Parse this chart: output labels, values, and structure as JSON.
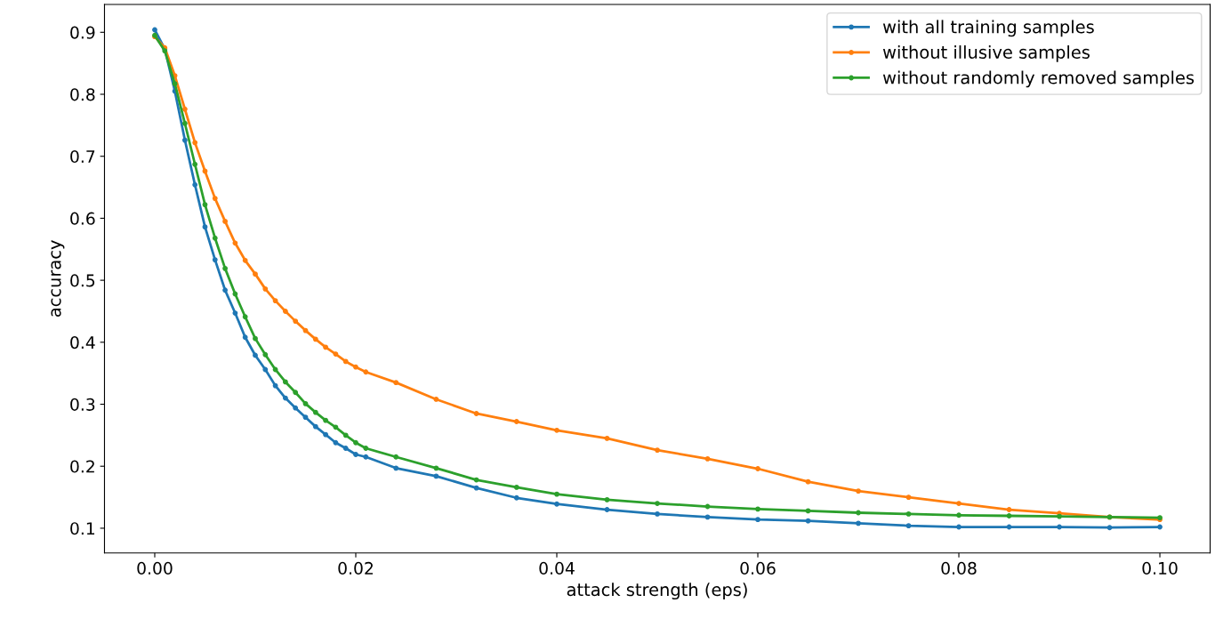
{
  "chart_data": {
    "type": "line",
    "xlabel": "attack strength (eps)",
    "ylabel": "accuracy",
    "x": [
      0,
      0.001,
      0.002,
      0.003,
      0.004,
      0.005,
      0.006,
      0.007,
      0.008,
      0.009,
      0.01,
      0.011,
      0.012,
      0.013,
      0.014,
      0.015,
      0.016,
      0.017,
      0.018,
      0.019,
      0.02,
      0.021,
      0.024,
      0.028,
      0.032,
      0.036,
      0.04,
      0.045,
      0.05,
      0.055,
      0.06,
      0.065,
      0.07,
      0.075,
      0.08,
      0.085,
      0.09,
      0.095,
      0.1
    ],
    "series": [
      {
        "name": "with all training samples",
        "color": "#1f77b4",
        "values": [
          0.904,
          0.873,
          0.805,
          0.726,
          0.654,
          0.586,
          0.533,
          0.484,
          0.447,
          0.408,
          0.379,
          0.356,
          0.33,
          0.31,
          0.294,
          0.279,
          0.264,
          0.251,
          0.238,
          0.229,
          0.219,
          0.215,
          0.197,
          0.184,
          0.165,
          0.149,
          0.139,
          0.13,
          0.123,
          0.118,
          0.114,
          0.112,
          0.108,
          0.104,
          0.102,
          0.102,
          0.102,
          0.101,
          0.102
        ]
      },
      {
        "name": "without illusive samples",
        "color": "#ff7f0e",
        "values": [
          0.893,
          0.875,
          0.83,
          0.776,
          0.722,
          0.676,
          0.632,
          0.595,
          0.56,
          0.532,
          0.51,
          0.486,
          0.467,
          0.45,
          0.434,
          0.419,
          0.405,
          0.392,
          0.381,
          0.369,
          0.36,
          0.352,
          0.335,
          0.308,
          0.285,
          0.272,
          0.258,
          0.245,
          0.226,
          0.212,
          0.196,
          0.175,
          0.16,
          0.15,
          0.14,
          0.13,
          0.124,
          0.118,
          0.114
        ]
      },
      {
        "name": "without randomly removed samples",
        "color": "#2ca02c",
        "values": [
          0.895,
          0.87,
          0.817,
          0.753,
          0.687,
          0.622,
          0.568,
          0.519,
          0.478,
          0.441,
          0.406,
          0.38,
          0.356,
          0.336,
          0.319,
          0.301,
          0.287,
          0.274,
          0.263,
          0.25,
          0.238,
          0.229,
          0.215,
          0.197,
          0.178,
          0.166,
          0.155,
          0.146,
          0.14,
          0.135,
          0.131,
          0.128,
          0.125,
          0.123,
          0.121,
          0.12,
          0.119,
          0.118,
          0.117
        ]
      }
    ],
    "xlim": [
      -0.005,
      0.105
    ],
    "xticks": [
      {
        "value": 0,
        "label": "0.00"
      },
      {
        "value": 0.02,
        "label": "0.02"
      },
      {
        "value": 0.04,
        "label": "0.04"
      },
      {
        "value": 0.06,
        "label": "0.06"
      },
      {
        "value": 0.08,
        "label": "0.08"
      },
      {
        "value": 0.1,
        "label": "0.10"
      }
    ],
    "ylim": [
      0.06,
      0.945
    ],
    "yticks": [
      0.1,
      0.2,
      0.3,
      0.4,
      0.5,
      0.6,
      0.7,
      0.8,
      0.9
    ],
    "legend": "top right",
    "marker": "circle",
    "line_style": "solid",
    "grid": false
  }
}
